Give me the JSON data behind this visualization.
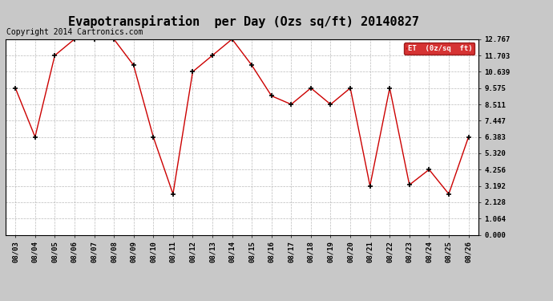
{
  "title": "Evapotranspiration  per Day (Ozs sq/ft) 20140827",
  "copyright_text": "Copyright 2014 Cartronics.com",
  "legend_label": "ET  (0z/sq  ft)",
  "x_labels": [
    "08/03",
    "08/04",
    "08/05",
    "08/06",
    "08/07",
    "08/08",
    "08/09",
    "08/10",
    "08/11",
    "08/12",
    "08/13",
    "08/14",
    "08/15",
    "08/16",
    "08/17",
    "08/18",
    "08/19",
    "08/20",
    "08/21",
    "08/22",
    "08/23",
    "08/24",
    "08/25",
    "08/26"
  ],
  "y_values": [
    9.575,
    6.383,
    11.703,
    12.767,
    12.767,
    12.767,
    11.064,
    6.383,
    2.662,
    10.639,
    11.703,
    12.767,
    11.064,
    9.064,
    8.511,
    9.575,
    8.511,
    9.575,
    3.192,
    9.575,
    3.256,
    4.256,
    2.662,
    6.383
  ],
  "y_ticks": [
    0.0,
    1.064,
    2.128,
    3.192,
    4.256,
    5.32,
    6.383,
    7.447,
    8.511,
    9.575,
    10.639,
    11.703,
    12.767
  ],
  "y_min": 0.0,
  "y_max": 12.767,
  "line_color": "#cc0000",
  "marker_color": "#000000",
  "bg_color": "#c8c8c8",
  "plot_bg_color": "#ffffff",
  "grid_color": "#aaaaaa",
  "legend_bg": "#cc0000",
  "legend_text_color": "#ffffff",
  "title_fontsize": 11,
  "copyright_fontsize": 7
}
